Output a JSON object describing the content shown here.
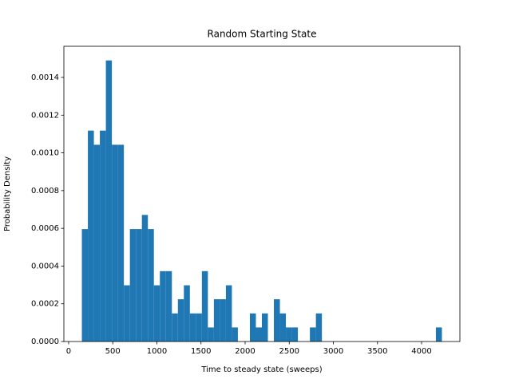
{
  "chart_data": {
    "type": "histogram",
    "title": "Random Starting State",
    "x_label": "Time to steady state (sweeps)",
    "y_label": "Probability Density",
    "color": "#1f77b4",
    "bins": [
      150,
      218,
      286,
      354,
      422,
      490,
      558,
      626,
      694,
      762,
      830,
      898,
      966,
      1034,
      1102,
      1170,
      1238,
      1306,
      1374,
      1442,
      1510,
      1578,
      1646,
      1714,
      1782,
      1850,
      1918,
      1986,
      2054,
      2122,
      2190,
      2258,
      2326,
      2394,
      2462,
      2530,
      2598,
      2666,
      2734,
      2802,
      2870,
      2938,
      3006,
      3074,
      3142,
      3210,
      3278,
      3346,
      3414,
      3482,
      3550,
      3618,
      3686,
      3754,
      3822,
      3890,
      3958,
      4026,
      4094,
      4162,
      4230
    ],
    "values": [
      0.000596,
      0.001118,
      0.001043,
      0.001118,
      0.00149,
      0.001043,
      0.001043,
      0.000298,
      0.000596,
      0.000596,
      0.000671,
      0.000596,
      0.000298,
      0.000373,
      0.000373,
      0.000149,
      0.000224,
      0.000298,
      0.000149,
      0.000149,
      0.000373,
      7.45e-05,
      0.000224,
      0.000224,
      0.000298,
      7.45e-05,
      0,
      0,
      0.000149,
      7.45e-05,
      0.000149,
      0,
      0.000224,
      0.000149,
      7.45e-05,
      7.45e-05,
      0,
      0,
      7.45e-05,
      0.000149,
      0,
      0,
      0,
      0,
      0,
      0,
      0,
      0,
      0,
      0,
      0,
      0,
      0,
      0,
      0,
      0,
      0,
      0,
      0,
      7.45e-05
    ],
    "xlim": [
      -54,
      4434
    ],
    "ylim": [
      0,
      0.001565
    ],
    "xticks": [
      0,
      500,
      1000,
      1500,
      2000,
      2500,
      3000,
      3500,
      4000
    ],
    "yticks": [
      {
        "value": 0,
        "label": "0.0000"
      },
      {
        "value": 0.0002,
        "label": "0.0002"
      },
      {
        "value": 0.0004,
        "label": "0.0004"
      },
      {
        "value": 0.0006,
        "label": "0.0006"
      },
      {
        "value": 0.0008,
        "label": "0.0008"
      },
      {
        "value": 0.001,
        "label": "0.0010"
      },
      {
        "value": 0.0012,
        "label": "0.0012"
      },
      {
        "value": 0.0014,
        "label": "0.0014"
      }
    ]
  }
}
